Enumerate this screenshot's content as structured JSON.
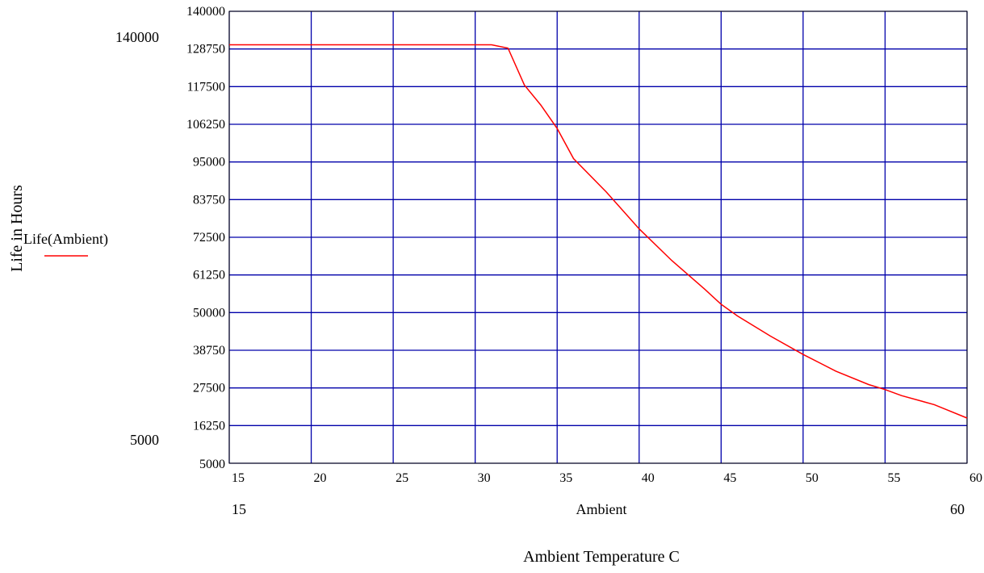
{
  "chart_data": {
    "type": "line",
    "xlabel": "Ambient Temperature C",
    "ylabel": "Life in Hours",
    "xlim": [
      15,
      60
    ],
    "ylim": [
      5000,
      140000
    ],
    "grid": true,
    "legend_position": "left",
    "x_ticks": [
      15,
      20,
      25,
      30,
      35,
      40,
      45,
      50,
      55,
      60
    ],
    "y_ticks": [
      5000,
      16250,
      27500,
      38750,
      50000,
      61250,
      72500,
      83750,
      95000,
      106250,
      117500,
      128750,
      140000
    ],
    "x_range_labels": {
      "min": "15",
      "max": "60",
      "variable": "Ambient"
    },
    "y_range_labels": {
      "min": "5000",
      "max": "140000"
    },
    "series": [
      {
        "name": "Life(Ambient)",
        "color": "#ff0000",
        "x": [
          15,
          20,
          25,
          30,
          31,
          32,
          33,
          34,
          35,
          36,
          38,
          40,
          42,
          44,
          45,
          46,
          48,
          50,
          52,
          54,
          55,
          56,
          58,
          60
        ],
        "y": [
          130000,
          130000,
          130000,
          130000,
          130000,
          129000,
          118000,
          112000,
          105000,
          96000,
          86000,
          75000,
          65500,
          57000,
          52500,
          49000,
          43000,
          37500,
          32500,
          28500,
          27000,
          25200,
          22500,
          18500
        ]
      }
    ]
  },
  "colors": {
    "grid": "#0000aa",
    "axis": "#000000",
    "series": "#ff0000"
  }
}
